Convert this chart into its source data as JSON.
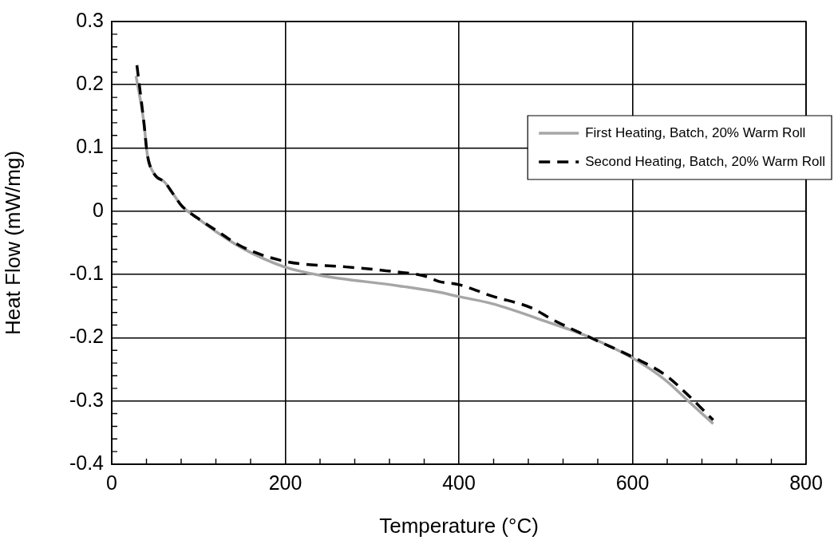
{
  "chart_data": {
    "type": "line",
    "xlabel": "Temperature (°C)",
    "ylabel": "Heat Flow (mW/mg)",
    "series": [
      {
        "name": "First Heating, Batch, 20% Warm Roll",
        "color": "#a6a6a6",
        "line_style": "solid",
        "x": [
          28,
          37,
          41,
          49,
          61,
          71,
          81,
          98,
          120,
          150,
          199,
          239,
          331,
          377,
          400,
          438,
          500,
          552,
          601,
          638,
          665,
          693
        ],
        "values": [
          0.214,
          0.141,
          0.09,
          0.059,
          0.046,
          0.027,
          0.008,
          -0.01,
          -0.032,
          -0.058,
          -0.088,
          -0.101,
          -0.118,
          -0.128,
          -0.135,
          -0.146,
          -0.174,
          -0.2,
          -0.233,
          -0.267,
          -0.301,
          -0.336
        ]
      },
      {
        "name": "Second Heating, Batch, 20% Warm Roll",
        "color": "#000000",
        "line_style": "dashed",
        "x": [
          29,
          37,
          41,
          49,
          61,
          71,
          81,
          98,
          120,
          150,
          199,
          270,
          316,
          362,
          377,
          400,
          438,
          484,
          506,
          555,
          601,
          638,
          665,
          693
        ],
        "values": [
          0.231,
          0.141,
          0.09,
          0.059,
          0.046,
          0.027,
          0.008,
          -0.01,
          -0.03,
          -0.056,
          -0.079,
          -0.088,
          -0.094,
          -0.103,
          -0.111,
          -0.116,
          -0.134,
          -0.153,
          -0.17,
          -0.202,
          -0.231,
          -0.259,
          -0.292,
          -0.33
        ]
      }
    ],
    "xlim": [
      0,
      800
    ],
    "xticks": [
      0,
      {
        "value": 40,
        "label": null
      },
      {
        "value": 80,
        "label": null
      },
      {
        "value": 120,
        "label": null
      },
      {
        "value": 160,
        "label": null
      },
      200,
      {
        "value": 240,
        "label": null
      },
      {
        "value": 280,
        "label": null
      },
      {
        "value": 320,
        "label": null
      },
      {
        "value": 360,
        "label": null
      },
      400,
      {
        "value": 440,
        "label": null
      },
      {
        "value": 480,
        "label": null
      },
      {
        "value": 520,
        "label": null
      },
      {
        "value": 560,
        "label": null
      },
      600,
      {
        "value": 640,
        "label": null
      },
      {
        "value": 680,
        "label": null
      },
      {
        "value": 720,
        "label": null
      },
      {
        "value": 760,
        "label": null
      },
      800
    ],
    "ylim": [
      -0.4,
      0.3
    ],
    "yticks": [
      -0.4,
      {
        "value": -0.38,
        "label": null
      },
      {
        "value": -0.36,
        "label": null
      },
      {
        "value": -0.34,
        "label": null
      },
      {
        "value": -0.32,
        "label": null
      },
      -0.3,
      {
        "value": -0.28,
        "label": null
      },
      {
        "value": -0.26,
        "label": null
      },
      {
        "value": -0.24,
        "label": null
      },
      {
        "value": -0.22,
        "label": null
      },
      -0.2,
      {
        "value": -0.18,
        "label": null
      },
      {
        "value": -0.16,
        "label": null
      },
      {
        "value": -0.14,
        "label": null
      },
      {
        "value": -0.12,
        "label": null
      },
      -0.1,
      {
        "value": -0.08,
        "label": null
      },
      {
        "value": -0.06,
        "label": null
      },
      {
        "value": -0.04,
        "label": null
      },
      {
        "value": -0.02,
        "label": null
      },
      0,
      {
        "value": 0.02,
        "label": null
      },
      {
        "value": 0.04,
        "label": null
      },
      {
        "value": 0.06,
        "label": null
      },
      {
        "value": 0.08,
        "label": null
      },
      0.1,
      {
        "value": 0.12,
        "label": null
      },
      {
        "value": 0.14,
        "label": null
      },
      {
        "value": 0.16,
        "label": null
      },
      {
        "value": 0.18,
        "label": null
      },
      0.2,
      {
        "value": 0.22,
        "label": null
      },
      {
        "value": 0.24,
        "label": null
      },
      {
        "value": 0.26,
        "label": null
      },
      {
        "value": 0.28,
        "label": null
      },
      0.3
    ],
    "grid": true,
    "legend": "top right",
    "marker": "none"
  }
}
